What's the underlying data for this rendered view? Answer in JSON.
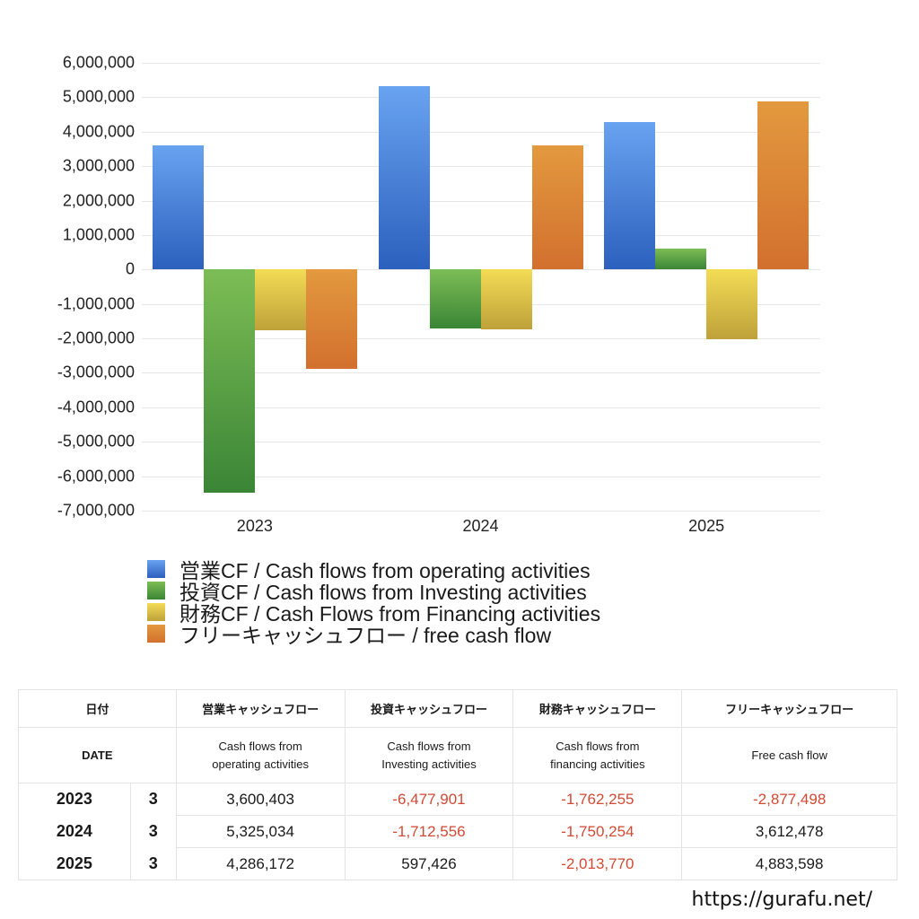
{
  "chart_data": {
    "type": "bar",
    "title": "",
    "xlabel": "",
    "ylabel": "",
    "categories": [
      "2023",
      "2024",
      "2025"
    ],
    "ylim": [
      -7000000,
      6000000
    ],
    "yticks": [
      "6,000,000",
      "5,000,000",
      "4,000,000",
      "3,000,000",
      "2,000,000",
      "1,000,000",
      "0",
      "-1,000,000",
      "-2,000,000",
      "-3,000,000",
      "-4,000,000",
      "-5,000,000",
      "-6,000,000",
      "-7,000,000"
    ],
    "grid": true,
    "legend_position": "bottom",
    "series": [
      {
        "name": "営業CF / Cash flows from operating activities",
        "color_top": "#68a3f0",
        "color_bottom": "#2c60bd",
        "values": [
          3600403,
          5325034,
          4286172
        ]
      },
      {
        "name": "投資CF / Cash flows from Investing activities",
        "color_top": "#7dbd55",
        "color_bottom": "#3a8536",
        "values": [
          -6477901,
          -1712556,
          597426
        ]
      },
      {
        "name": "財務CF / Cash Flows from Financing activities",
        "color_top": "#f3dc55",
        "color_bottom": "#bfa13a",
        "values": [
          -1762255,
          -1750254,
          -2013770
        ]
      },
      {
        "name": "フリーキャッシュフロー / free cash flow",
        "color_top": "#e3993e",
        "color_bottom": "#d2702e",
        "values": [
          -2877498,
          3612478,
          4883598
        ]
      }
    ]
  },
  "legend": [
    {
      "label": "営業CF / Cash flows from operating activities",
      "color": "#4a82d8"
    },
    {
      "label": "投資CF / Cash flows from Investing activities",
      "color": "#55a046"
    },
    {
      "label": "財務CF / Cash Flows from Financing activities",
      "color": "#dcc449"
    },
    {
      "label": "フリーキャッシュフロー / free cash flow",
      "color": "#dd8235"
    }
  ],
  "table": {
    "header_jp": [
      "日付",
      "営業キャッシュフロー",
      "投資キャッシュフロー",
      "財務キャッシュフロー",
      "フリーキャッシュフロー"
    ],
    "header_en": [
      "DATE",
      "Cash flows from operating activities",
      "Cash flows from Investing activities",
      "Cash flows from financing activities",
      "Free cash flow"
    ],
    "rows": [
      {
        "year": "2023",
        "month": "3",
        "operating": "3,600,403",
        "investing": "-6,477,901",
        "financing": "-1,762,255",
        "free": "-2,877,498"
      },
      {
        "year": "2024",
        "month": "3",
        "operating": "5,325,034",
        "investing": "-1,712,556",
        "financing": "-1,750,254",
        "free": "3,612,478"
      },
      {
        "year": "2025",
        "month": "3",
        "operating": "4,286,172",
        "investing": "597,426",
        "financing": "-2,013,770",
        "free": "4,883,598"
      }
    ],
    "negative_color": "#d14a35"
  },
  "footer": {
    "url": "https://gurafu.net/"
  }
}
